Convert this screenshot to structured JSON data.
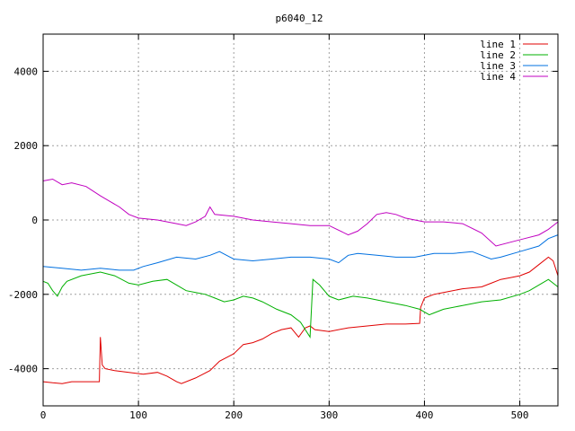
{
  "chart_data": {
    "type": "line",
    "title": "p6040_12",
    "xlabel": "",
    "ylabel": "",
    "xlim": [
      0,
      540
    ],
    "ylim": [
      -5000,
      5000
    ],
    "xticks": [
      0,
      100,
      200,
      300,
      400,
      500
    ],
    "yticks": [
      -4000,
      -2000,
      0,
      2000,
      4000
    ],
    "grid": true,
    "legend_position": "top-right",
    "series": [
      {
        "name": "line 1",
        "color": "#e00000",
        "points": [
          [
            0,
            -4350
          ],
          [
            10,
            -4380
          ],
          [
            20,
            -4400
          ],
          [
            30,
            -4350
          ],
          [
            40,
            -4350
          ],
          [
            59,
            -4350
          ],
          [
            60,
            -3150
          ],
          [
            62,
            -3900
          ],
          [
            65,
            -4000
          ],
          [
            75,
            -4050
          ],
          [
            90,
            -4100
          ],
          [
            105,
            -4150
          ],
          [
            120,
            -4100
          ],
          [
            130,
            -4200
          ],
          [
            140,
            -4350
          ],
          [
            145,
            -4400
          ],
          [
            160,
            -4250
          ],
          [
            175,
            -4050
          ],
          [
            185,
            -3800
          ],
          [
            200,
            -3600
          ],
          [
            210,
            -3350
          ],
          [
            220,
            -3300
          ],
          [
            230,
            -3200
          ],
          [
            240,
            -3050
          ],
          [
            250,
            -2950
          ],
          [
            260,
            -2900
          ],
          [
            268,
            -3150
          ],
          [
            275,
            -2900
          ],
          [
            280,
            -2850
          ],
          [
            285,
            -2950
          ],
          [
            300,
            -3000
          ],
          [
            320,
            -2900
          ],
          [
            340,
            -2850
          ],
          [
            360,
            -2800
          ],
          [
            380,
            -2800
          ],
          [
            395,
            -2780
          ],
          [
            396,
            -2350
          ],
          [
            400,
            -2100
          ],
          [
            410,
            -2000
          ],
          [
            420,
            -1950
          ],
          [
            440,
            -1850
          ],
          [
            460,
            -1800
          ],
          [
            470,
            -1700
          ],
          [
            480,
            -1600
          ],
          [
            490,
            -1550
          ],
          [
            500,
            -1500
          ],
          [
            510,
            -1400
          ],
          [
            520,
            -1200
          ],
          [
            530,
            -1000
          ],
          [
            535,
            -1100
          ],
          [
            540,
            -1500
          ]
        ]
      },
      {
        "name": "line 2",
        "color": "#00b000",
        "points": [
          [
            0,
            -1650
          ],
          [
            5,
            -1700
          ],
          [
            10,
            -1900
          ],
          [
            15,
            -2050
          ],
          [
            20,
            -1800
          ],
          [
            25,
            -1650
          ],
          [
            40,
            -1500
          ],
          [
            60,
            -1400
          ],
          [
            75,
            -1500
          ],
          [
            90,
            -1700
          ],
          [
            100,
            -1750
          ],
          [
            115,
            -1650
          ],
          [
            130,
            -1600
          ],
          [
            140,
            -1750
          ],
          [
            150,
            -1900
          ],
          [
            160,
            -1950
          ],
          [
            170,
            -2000
          ],
          [
            180,
            -2100
          ],
          [
            190,
            -2200
          ],
          [
            200,
            -2150
          ],
          [
            210,
            -2050
          ],
          [
            220,
            -2100
          ],
          [
            230,
            -2200
          ],
          [
            245,
            -2400
          ],
          [
            260,
            -2550
          ],
          [
            270,
            -2750
          ],
          [
            280,
            -3150
          ],
          [
            283,
            -1600
          ],
          [
            290,
            -1750
          ],
          [
            300,
            -2050
          ],
          [
            310,
            -2150
          ],
          [
            325,
            -2050
          ],
          [
            340,
            -2100
          ],
          [
            360,
            -2200
          ],
          [
            380,
            -2300
          ],
          [
            395,
            -2400
          ],
          [
            405,
            -2550
          ],
          [
            410,
            -2500
          ],
          [
            420,
            -2400
          ],
          [
            440,
            -2300
          ],
          [
            460,
            -2200
          ],
          [
            480,
            -2150
          ],
          [
            500,
            -2000
          ],
          [
            510,
            -1900
          ],
          [
            520,
            -1750
          ],
          [
            530,
            -1600
          ],
          [
            540,
            -1800
          ]
        ]
      },
      {
        "name": "line 3",
        "color": "#0070e0",
        "points": [
          [
            0,
            -1250
          ],
          [
            20,
            -1300
          ],
          [
            40,
            -1350
          ],
          [
            60,
            -1300
          ],
          [
            80,
            -1350
          ],
          [
            95,
            -1350
          ],
          [
            105,
            -1250
          ],
          [
            120,
            -1150
          ],
          [
            140,
            -1000
          ],
          [
            160,
            -1050
          ],
          [
            175,
            -950
          ],
          [
            185,
            -850
          ],
          [
            200,
            -1050
          ],
          [
            220,
            -1100
          ],
          [
            240,
            -1050
          ],
          [
            260,
            -1000
          ],
          [
            280,
            -1000
          ],
          [
            300,
            -1050
          ],
          [
            310,
            -1150
          ],
          [
            320,
            -950
          ],
          [
            330,
            -900
          ],
          [
            350,
            -950
          ],
          [
            370,
            -1000
          ],
          [
            390,
            -1000
          ],
          [
            410,
            -900
          ],
          [
            430,
            -900
          ],
          [
            450,
            -850
          ],
          [
            470,
            -1050
          ],
          [
            480,
            -1000
          ],
          [
            500,
            -850
          ],
          [
            520,
            -700
          ],
          [
            530,
            -500
          ],
          [
            540,
            -400
          ]
        ]
      },
      {
        "name": "line 4",
        "color": "#c000c0",
        "points": [
          [
            0,
            1050
          ],
          [
            10,
            1100
          ],
          [
            20,
            950
          ],
          [
            30,
            1000
          ],
          [
            45,
            900
          ],
          [
            60,
            650
          ],
          [
            70,
            500
          ],
          [
            80,
            350
          ],
          [
            90,
            150
          ],
          [
            100,
            50
          ],
          [
            120,
            0
          ],
          [
            140,
            -100
          ],
          [
            150,
            -150
          ],
          [
            160,
            -50
          ],
          [
            170,
            100
          ],
          [
            175,
            350
          ],
          [
            180,
            150
          ],
          [
            200,
            100
          ],
          [
            220,
            0
          ],
          [
            240,
            -50
          ],
          [
            260,
            -100
          ],
          [
            280,
            -150
          ],
          [
            300,
            -150
          ],
          [
            320,
            -400
          ],
          [
            330,
            -300
          ],
          [
            340,
            -100
          ],
          [
            350,
            150
          ],
          [
            360,
            200
          ],
          [
            370,
            150
          ],
          [
            380,
            50
          ],
          [
            400,
            -50
          ],
          [
            420,
            -50
          ],
          [
            440,
            -100
          ],
          [
            460,
            -350
          ],
          [
            475,
            -700
          ],
          [
            490,
            -600
          ],
          [
            505,
            -500
          ],
          [
            520,
            -400
          ],
          [
            530,
            -250
          ],
          [
            540,
            -50
          ]
        ]
      }
    ]
  }
}
